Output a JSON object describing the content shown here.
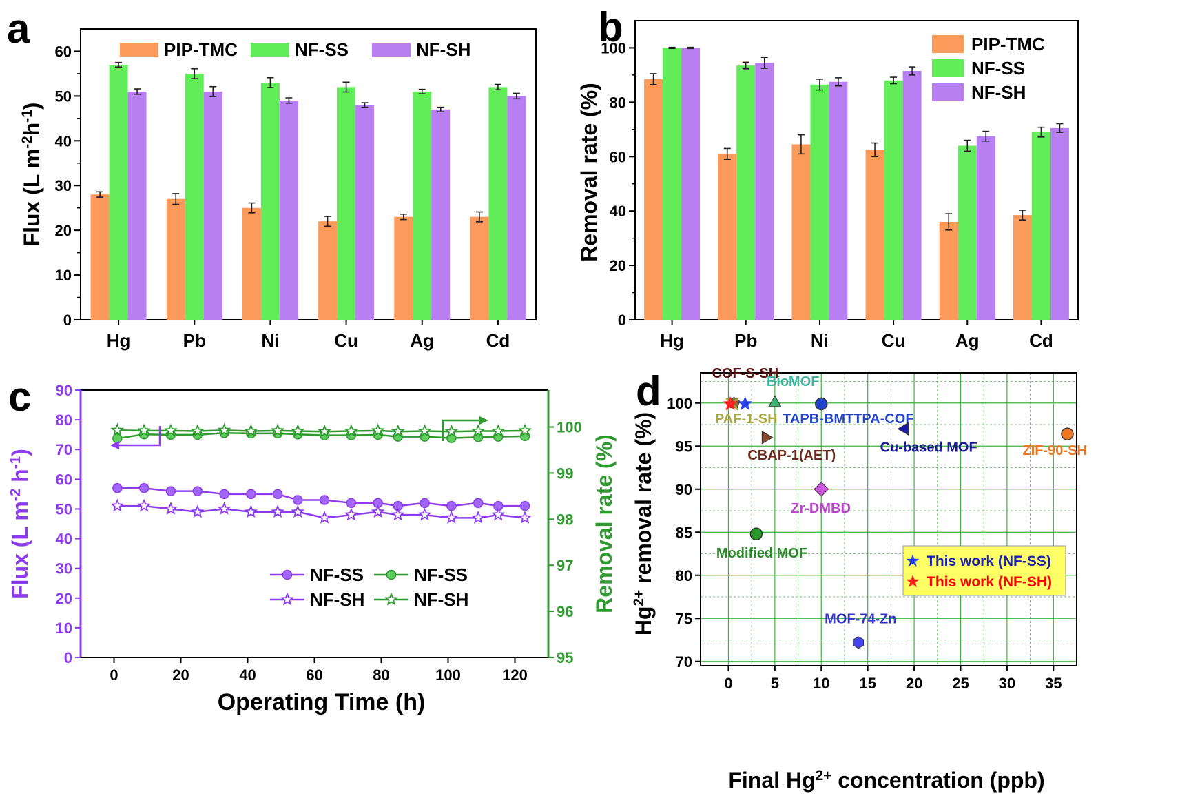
{
  "chart_data": [
    {
      "panel": "a",
      "type": "bar",
      "categories": [
        "Hg",
        "Pb",
        "Ni",
        "Cu",
        "Ag",
        "Cd"
      ],
      "series": [
        {
          "name": "PIP-TMC",
          "color": "#fb9a5a",
          "values": [
            28,
            27,
            25,
            22,
            23,
            23
          ],
          "errors": [
            0.6,
            1.2,
            1.1,
            1.1,
            0.6,
            1.1
          ]
        },
        {
          "name": "NF-SS",
          "color": "#62ec5a",
          "values": [
            57,
            55,
            53,
            52,
            51,
            52
          ],
          "errors": [
            0.5,
            1.1,
            1.1,
            1.1,
            0.5,
            0.6
          ]
        },
        {
          "name": "NF-SH",
          "color": "#b77ff2",
          "values": [
            51,
            51,
            49,
            48,
            47,
            50
          ],
          "errors": [
            0.6,
            1.1,
            0.6,
            0.5,
            0.5,
            0.6
          ]
        }
      ],
      "xlabel": "",
      "ylabel_parts": [
        "Flux (L m",
        "-2",
        "h",
        "-1",
        ")"
      ],
      "ylim": [
        0,
        65
      ],
      "yticks": [
        0,
        10,
        20,
        30,
        40,
        50,
        60
      ],
      "legend": "top, horizontal"
    },
    {
      "panel": "b",
      "type": "bar",
      "categories": [
        "Hg",
        "Pb",
        "Ni",
        "Cu",
        "Ag",
        "Cd"
      ],
      "series": [
        {
          "name": "PIP-TMC",
          "color": "#fb9a5a",
          "values": [
            88.5,
            61,
            64.5,
            62.5,
            36,
            38.5
          ],
          "errors": [
            2,
            2,
            3.5,
            2.5,
            3,
            1.8
          ]
        },
        {
          "name": "NF-SS",
          "color": "#62ec5a",
          "values": [
            100,
            93.5,
            86.5,
            88,
            64,
            69
          ],
          "errors": [
            0.2,
            1.2,
            2,
            1.2,
            2,
            1.8
          ]
        },
        {
          "name": "NF-SH",
          "color": "#b77ff2",
          "values": [
            100,
            94.5,
            87.5,
            91.5,
            67.5,
            70.5
          ],
          "errors": [
            0.2,
            2,
            1.5,
            1.5,
            1.8,
            1.6
          ]
        }
      ],
      "xlabel": "",
      "ylabel": "Removal rate (%)",
      "ylim": [
        0,
        110
      ],
      "yticks": [
        0,
        20,
        40,
        60,
        80,
        100
      ],
      "legend": "top-right, vertical"
    },
    {
      "panel": "c",
      "type": "line",
      "x": [
        1,
        9,
        17,
        25,
        33,
        41,
        49,
        55,
        63,
        71,
        79,
        85,
        93,
        101,
        109,
        115,
        123
      ],
      "series": [
        {
          "name": "NF-SS",
          "axis": "left",
          "marker": "circle",
          "color": "#8e3bf0",
          "values": [
            57,
            57,
            56,
            56,
            55,
            55,
            55,
            53,
            53,
            52,
            52,
            51,
            52,
            51,
            52,
            51,
            51
          ]
        },
        {
          "name": "NF-SH",
          "axis": "left",
          "marker": "star",
          "color": "#8e3bf0",
          "values": [
            51,
            51,
            50,
            49,
            50,
            49,
            49,
            49,
            47,
            48,
            49,
            48,
            48,
            47,
            47,
            48,
            47
          ]
        },
        {
          "name": "NF-SS",
          "axis": "right",
          "marker": "circle",
          "color": "#2f9a2f",
          "values": [
            99.75,
            99.84,
            99.83,
            99.83,
            99.87,
            99.86,
            99.86,
            99.84,
            99.82,
            99.82,
            99.83,
            99.79,
            99.79,
            99.76,
            99.78,
            99.79,
            99.8
          ]
        },
        {
          "name": "NF-SH",
          "axis": "right",
          "marker": "star",
          "color": "#2f9a2f",
          "values": [
            99.93,
            99.92,
            99.92,
            99.91,
            99.93,
            99.91,
            99.92,
            99.91,
            99.9,
            99.91,
            99.92,
            99.9,
            99.91,
            99.9,
            99.91,
            99.91,
            99.92
          ]
        }
      ],
      "xlabel": "Operating Time (h)",
      "xlim": [
        -10,
        130
      ],
      "xticks": [
        0,
        20,
        40,
        60,
        80,
        100,
        120
      ],
      "ylabel_left_parts": [
        "Flux (L m",
        "-2",
        " h",
        "-1",
        ")"
      ],
      "ylim_left": [
        0,
        90
      ],
      "yticks_left": [
        0,
        10,
        20,
        30,
        40,
        50,
        60,
        70,
        80,
        90
      ],
      "ylabel_right": "Removal  rate (%)",
      "ylim_right": [
        95,
        100.8
      ],
      "yticks_right": [
        95,
        96,
        97,
        98,
        99,
        100
      ],
      "legend": "lower-right, two columns"
    },
    {
      "panel": "d",
      "type": "scatter",
      "points": [
        {
          "label": "COF-S-SH",
          "x": 0.6,
          "y": 100,
          "marker": "pentagon",
          "color": "#8a6a3a",
          "label_color": "#5a1010"
        },
        {
          "label": "BioMOF",
          "x": 5,
          "y": 100,
          "marker": "triangle-up",
          "color": "#3cb371",
          "label_color": "#3cb39a"
        },
        {
          "label": "TAPB-BMTTPA-COF",
          "x": 10,
          "y": 99.9,
          "marker": "circle",
          "color": "#2244cc",
          "label_color": "#2244cc"
        },
        {
          "label": "PAF-1-SH",
          "x": 0.4,
          "y": 99.9,
          "marker": "x",
          "color": "#a0a030",
          "label_color": "#a8a840"
        },
        {
          "label": "Cu-based MOF",
          "x": 19,
          "y": 97,
          "marker": "triangle-left",
          "color": "#1a1aaa",
          "label_color": "#1a1a9a"
        },
        {
          "label": "CBAP-1(AET)",
          "x": 4,
          "y": 96,
          "marker": "triangle-right",
          "color": "#8b4a2b",
          "label_color": "#6b2a1b"
        },
        {
          "label": "ZIF-90-SH",
          "x": 36.5,
          "y": 96.4,
          "marker": "circle",
          "color": "#ee7722",
          "label_color": "#ee7722"
        },
        {
          "label": "Zr-DMBD",
          "x": 10,
          "y": 90,
          "marker": "diamond",
          "color": "#cc55dd",
          "label_color": "#bb44cc"
        },
        {
          "label": "Modified MOF",
          "x": 3,
          "y": 84.8,
          "marker": "circle",
          "color": "#2a9a2a",
          "label_color": "#2a8a2a"
        },
        {
          "label": "MOF-74-Zn",
          "x": 14,
          "y": 72.2,
          "marker": "hexagon",
          "color": "#4444ee",
          "label_color": "#3333cc"
        },
        {
          "label": "This work (NF-SS)",
          "x": 1.8,
          "y": 99.9,
          "marker": "star",
          "color": "#2a44ee",
          "label_color": "#1a22aa"
        },
        {
          "label": "This work (NF-SH)",
          "x": 0.2,
          "y": 99.9,
          "marker": "star",
          "color": "#ff2020",
          "label_color": "#ff0000"
        }
      ],
      "xlabel_parts": [
        "Final Hg",
        "2+",
        " concentration (ppb)"
      ],
      "xlim": [
        -3,
        37.5
      ],
      "xticks": [
        0,
        5,
        10,
        15,
        20,
        25,
        30,
        35
      ],
      "ylabel_parts": [
        "Hg",
        "2+",
        " removal rate (%)"
      ],
      "ylim": [
        69.5,
        103.5
      ],
      "yticks": [
        70,
        75,
        80,
        85,
        90,
        95,
        100
      ],
      "grid": true,
      "legend": {
        "position": "lower-right",
        "background": "#ffff66",
        "entries": [
          "This work (NF-SS)",
          "This work (NF-SH)"
        ]
      }
    }
  ],
  "panels": {
    "a": "a",
    "b": "b",
    "c": "c",
    "d": "d"
  }
}
